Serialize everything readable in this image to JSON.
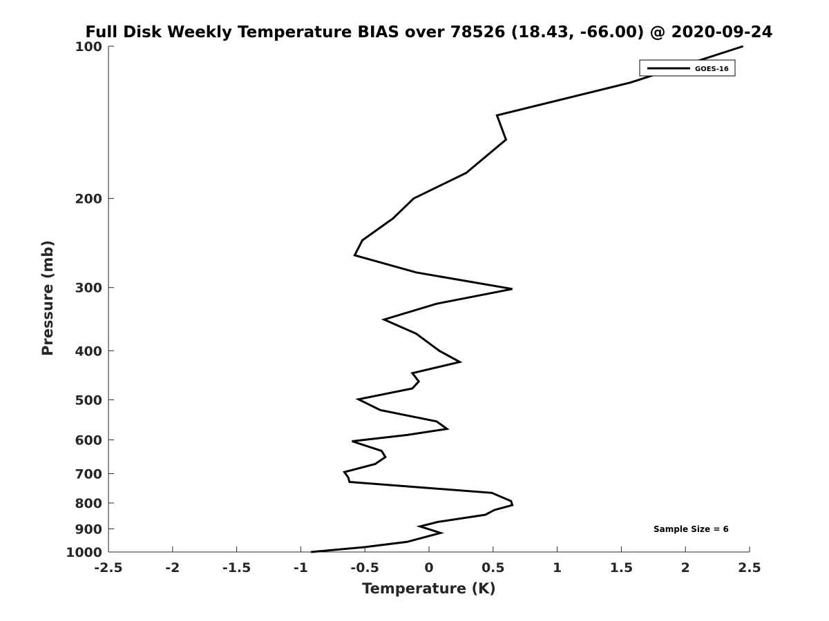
{
  "chart_data": {
    "type": "line",
    "title": "Full Disk Weekly Temperature BIAS over 78526 (18.43, -66.00) @ 2020-09-24",
    "xlabel": "Temperature (K)",
    "ylabel": "Pressure (mb)",
    "xlim": [
      -2.5,
      2.5
    ],
    "ylim": [
      100,
      1000
    ],
    "y_scale": "log",
    "y_reversed": true,
    "grid": false,
    "legend_position": "top-right",
    "x_ticks": [
      "-2.5",
      "-2",
      "-1.5",
      "-1",
      "-0.5",
      "0",
      "0.5",
      "1",
      "1.5",
      "2",
      "2.5"
    ],
    "y_ticks": [
      "100",
      "200",
      "300",
      "400",
      "500",
      "600",
      "700",
      "800",
      "900",
      "1000"
    ],
    "annotation": "Sample Size = 6",
    "series": [
      {
        "name": "GOES-16",
        "color": "#000000",
        "points": [
          {
            "x": 2.45,
            "y": 100
          },
          {
            "x": 1.57,
            "y": 118
          },
          {
            "x": 0.53,
            "y": 137
          },
          {
            "x": 0.6,
            "y": 153
          },
          {
            "x": 0.29,
            "y": 178
          },
          {
            "x": -0.12,
            "y": 200
          },
          {
            "x": -0.28,
            "y": 219
          },
          {
            "x": -0.52,
            "y": 242
          },
          {
            "x": -0.58,
            "y": 259
          },
          {
            "x": -0.1,
            "y": 280
          },
          {
            "x": 0.65,
            "y": 302
          },
          {
            "x": 0.06,
            "y": 323
          },
          {
            "x": -0.35,
            "y": 347
          },
          {
            "x": -0.1,
            "y": 370
          },
          {
            "x": 0.08,
            "y": 400
          },
          {
            "x": 0.24,
            "y": 421
          },
          {
            "x": -0.13,
            "y": 443
          },
          {
            "x": -0.08,
            "y": 460
          },
          {
            "x": -0.13,
            "y": 475
          },
          {
            "x": -0.55,
            "y": 499
          },
          {
            "x": -0.38,
            "y": 524
          },
          {
            "x": 0.06,
            "y": 552
          },
          {
            "x": 0.14,
            "y": 571
          },
          {
            "x": -0.17,
            "y": 587
          },
          {
            "x": -0.6,
            "y": 604
          },
          {
            "x": -0.37,
            "y": 631
          },
          {
            "x": -0.34,
            "y": 649
          },
          {
            "x": -0.42,
            "y": 670
          },
          {
            "x": -0.66,
            "y": 695
          },
          {
            "x": -0.63,
            "y": 712
          },
          {
            "x": -0.62,
            "y": 727
          },
          {
            "x": 0.49,
            "y": 764
          },
          {
            "x": 0.64,
            "y": 793
          },
          {
            "x": 0.65,
            "y": 808
          },
          {
            "x": 0.51,
            "y": 826
          },
          {
            "x": 0.44,
            "y": 844
          },
          {
            "x": 0.07,
            "y": 872
          },
          {
            "x": -0.07,
            "y": 890
          },
          {
            "x": 0.09,
            "y": 917
          },
          {
            "x": -0.17,
            "y": 955
          },
          {
            "x": -0.5,
            "y": 978
          },
          {
            "x": -0.92,
            "y": 1000
          }
        ]
      }
    ]
  }
}
